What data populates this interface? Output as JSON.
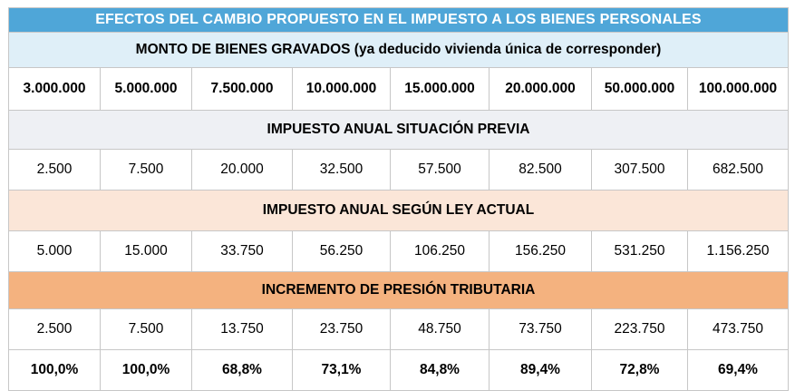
{
  "title": "EFECTOS DEL CAMBIO PROPUESTO EN EL IMPUESTO A LOS BIENES PERSONALES",
  "subtitle": "MONTO DE BIENES GRAVADOS (ya deducido vivienda única de corresponder)",
  "amounts": [
    "3.000.000",
    "5.000.000",
    "7.500.000",
    "10.000.000",
    "15.000.000",
    "20.000.000",
    "50.000.000",
    "100.000.000"
  ],
  "previous": {
    "header": "IMPUESTO ANUAL SITUACIÓN PREVIA",
    "values": [
      "2.500",
      "7.500",
      "20.000",
      "32.500",
      "57.500",
      "82.500",
      "307.500",
      "682.500"
    ]
  },
  "current": {
    "header": "IMPUESTO ANUAL SEGÚN LEY ACTUAL",
    "values": [
      "5.000",
      "15.000",
      "33.750",
      "56.250",
      "106.250",
      "156.250",
      "531.250",
      "1.156.250"
    ]
  },
  "increase": {
    "header": "INCREMENTO DE PRESIÓN TRIBUTARIA",
    "values": [
      "2.500",
      "7.500",
      "13.750",
      "23.750",
      "48.750",
      "73.750",
      "223.750",
      "473.750"
    ],
    "percent": [
      "100,0%",
      "100,0%",
      "68,8%",
      "73,1%",
      "84,8%",
      "89,4%",
      "72,8%",
      "69,4%"
    ]
  },
  "colors": {
    "title_bg": "#4fa6d8",
    "subtitle_bg": "#dfeff8",
    "previous_bg": "#eef0f4",
    "current_bg": "#fbe6d8",
    "increase_bg": "#f4b27f"
  }
}
